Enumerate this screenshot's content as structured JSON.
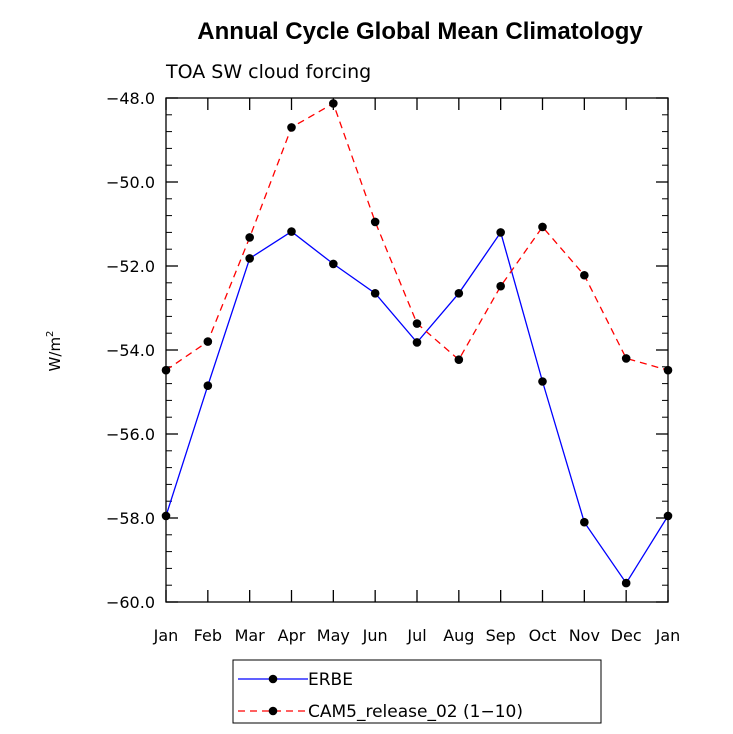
{
  "chart_data": {
    "type": "line",
    "title": "Annual Cycle Global Mean Climatology",
    "subtitle": "TOA SW cloud forcing",
    "xlabel": "",
    "ylabel_base": "W/m",
    "ylabel_exp": "2",
    "categories": [
      "Jan",
      "Feb",
      "Mar",
      "Apr",
      "May",
      "Jun",
      "Jul",
      "Aug",
      "Sep",
      "Oct",
      "Nov",
      "Dec",
      "Jan"
    ],
    "ylim": [
      -60.0,
      -48.0
    ],
    "yticks": [
      -48.0,
      -50.0,
      -52.0,
      -54.0,
      -56.0,
      -58.0,
      -60.0
    ],
    "ytick_labels": [
      "−48.0",
      "−50.0",
      "−52.0",
      "−54.0",
      "−56.0",
      "−58.0",
      "−60.0"
    ],
    "series": [
      {
        "name": "ERBE",
        "color": "#0000ff",
        "dash": "solid",
        "values": [
          -57.95,
          -54.85,
          -51.82,
          -51.18,
          -51.95,
          -52.65,
          -53.82,
          -52.65,
          -51.2,
          -54.75,
          -58.1,
          -59.55,
          -57.95
        ]
      },
      {
        "name": "CAM5_release_02 (1−10)",
        "color": "#ff0000",
        "dash": "dashed",
        "values": [
          -54.48,
          -53.8,
          -51.32,
          -48.7,
          -48.13,
          -50.95,
          -53.37,
          -54.23,
          -52.48,
          -51.07,
          -52.22,
          -54.2,
          -54.48
        ]
      }
    ],
    "legend_position": "bottom-center"
  }
}
